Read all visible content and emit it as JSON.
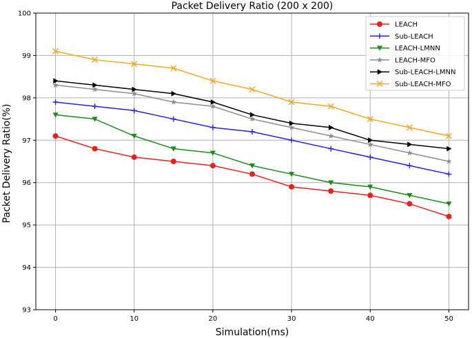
{
  "chart_data": {
    "type": "line",
    "title": "Packet Delivery Ratio (200 x 200)",
    "xlabel": "Simulation(ms)",
    "ylabel": "Packet Delivery Ratio(%)",
    "xlim": [
      -2.5,
      52.5
    ],
    "ylim": [
      93,
      100
    ],
    "xticks": [
      0,
      10,
      20,
      30,
      40,
      50
    ],
    "yticks": [
      93,
      94,
      95,
      96,
      97,
      98,
      99,
      100
    ],
    "grid": true,
    "legend_position": "top-right",
    "x": [
      0,
      5,
      10,
      15,
      20,
      25,
      30,
      35,
      40,
      45,
      50
    ],
    "series": [
      {
        "name": "LEACH",
        "color": "#e8211b",
        "marker": "circle",
        "values": [
          97.1,
          96.8,
          96.6,
          96.5,
          96.4,
          96.2,
          95.9,
          95.8,
          95.7,
          95.5,
          95.2
        ]
      },
      {
        "name": "Sub-LEACH",
        "color": "#2222dd",
        "marker": "plus",
        "values": [
          97.9,
          97.8,
          97.7,
          97.5,
          97.3,
          97.2,
          97.0,
          96.8,
          96.6,
          96.4,
          96.2
        ]
      },
      {
        "name": "LEACH-LMNN",
        "color": "#1a8a1a",
        "marker": "triangle-down",
        "values": [
          97.6,
          97.5,
          97.1,
          96.8,
          96.7,
          96.4,
          96.2,
          96.0,
          95.9,
          95.7,
          95.5
        ]
      },
      {
        "name": "LEACH-MFO",
        "color": "#8c8c8c",
        "marker": "star",
        "values": [
          98.3,
          98.2,
          98.1,
          97.9,
          97.8,
          97.5,
          97.3,
          97.1,
          96.9,
          96.7,
          96.5
        ]
      },
      {
        "name": "Sub-LEACH-LMNN",
        "color": "#000000",
        "marker": "triangle-right",
        "values": [
          98.4,
          98.3,
          98.2,
          98.1,
          97.9,
          97.6,
          97.4,
          97.3,
          97.0,
          96.9,
          96.8
        ]
      },
      {
        "name": "Sub-LEACH-MFO",
        "color": "#f5a623",
        "marker": "x",
        "values": [
          99.1,
          98.9,
          98.8,
          98.7,
          98.4,
          98.2,
          97.9,
          97.8,
          97.5,
          97.3,
          97.1
        ]
      }
    ]
  }
}
